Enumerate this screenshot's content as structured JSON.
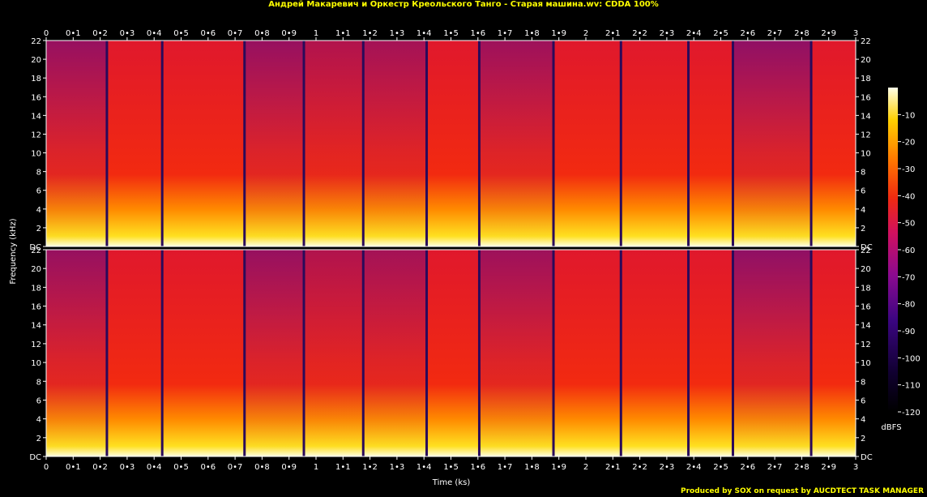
{
  "title": "Андрей Макаревич и Оркестр Креольского Танго - Старая машина.wv: CDDA 100%",
  "footer": "Produced by SOX on request by AUCDTECT TASK MANAGER",
  "chart_data": {
    "type": "heatmap",
    "xlabel": "Time (ks)",
    "ylabel": "Frequency (kHz)",
    "xlim": [
      0,
      3
    ],
    "ylim": [
      0,
      22
    ],
    "x_ticks": [
      {
        "v": 0,
        "label": "0"
      },
      {
        "v": 0.1,
        "label": "0•1"
      },
      {
        "v": 0.2,
        "label": "0•2"
      },
      {
        "v": 0.3,
        "label": "0•3"
      },
      {
        "v": 0.4,
        "label": "0•4"
      },
      {
        "v": 0.5,
        "label": "0•5"
      },
      {
        "v": 0.6,
        "label": "0•6"
      },
      {
        "v": 0.7,
        "label": "0•7"
      },
      {
        "v": 0.8,
        "label": "0•8"
      },
      {
        "v": 0.9,
        "label": "0•9"
      },
      {
        "v": 1.0,
        "label": "1"
      },
      {
        "v": 1.1,
        "label": "1•1"
      },
      {
        "v": 1.2,
        "label": "1•2"
      },
      {
        "v": 1.3,
        "label": "1•3"
      },
      {
        "v": 1.4,
        "label": "1•4"
      },
      {
        "v": 1.5,
        "label": "1•5"
      },
      {
        "v": 1.6,
        "label": "1•6"
      },
      {
        "v": 1.7,
        "label": "1•7"
      },
      {
        "v": 1.8,
        "label": "1•8"
      },
      {
        "v": 1.9,
        "label": "1•9"
      },
      {
        "v": 2.0,
        "label": "2"
      },
      {
        "v": 2.1,
        "label": "2•1"
      },
      {
        "v": 2.2,
        "label": "2•2"
      },
      {
        "v": 2.3,
        "label": "2•3"
      },
      {
        "v": 2.4,
        "label": "2•4"
      },
      {
        "v": 2.5,
        "label": "2•5"
      },
      {
        "v": 2.6,
        "label": "2•6"
      },
      {
        "v": 2.7,
        "label": "2•7"
      },
      {
        "v": 2.8,
        "label": "2•8"
      },
      {
        "v": 2.9,
        "label": "2•9"
      },
      {
        "v": 3.0,
        "label": "3"
      }
    ],
    "y_ticks": [
      {
        "v": 0,
        "label": "DC"
      },
      {
        "v": 2,
        "label": "2"
      },
      {
        "v": 4,
        "label": "4"
      },
      {
        "v": 6,
        "label": "6"
      },
      {
        "v": 8,
        "label": "8"
      },
      {
        "v": 10,
        "label": "10"
      },
      {
        "v": 12,
        "label": "12"
      },
      {
        "v": 14,
        "label": "14"
      },
      {
        "v": 16,
        "label": "16"
      },
      {
        "v": 18,
        "label": "18"
      },
      {
        "v": 20,
        "label": "20"
      },
      {
        "v": 22,
        "label": "22"
      }
    ],
    "colorbar": {
      "label": "dBFS",
      "range": [
        -120,
        0
      ],
      "ticks": [
        -10,
        -20,
        -30,
        -40,
        -50,
        -60,
        -70,
        -80,
        -90,
        -100,
        -110,
        -120
      ]
    },
    "track_boundaries_ks": [
      0.225,
      0.43,
      0.735,
      0.955,
      1.175,
      1.41,
      1.605,
      1.88,
      2.13,
      2.38,
      2.545,
      2.835
    ],
    "quiet_segments": [
      {
        "start": 0.0,
        "end": 0.225,
        "level": 0.55
      },
      {
        "start": 0.735,
        "end": 0.955,
        "level": 0.55
      },
      {
        "start": 0.955,
        "end": 1.175,
        "level": 0.35
      },
      {
        "start": 1.175,
        "end": 1.41,
        "level": 0.45
      },
      {
        "start": 1.605,
        "end": 1.88,
        "level": 0.5
      },
      {
        "start": 2.545,
        "end": 2.835,
        "level": 0.6
      }
    ],
    "channels": [
      "left",
      "right"
    ]
  }
}
